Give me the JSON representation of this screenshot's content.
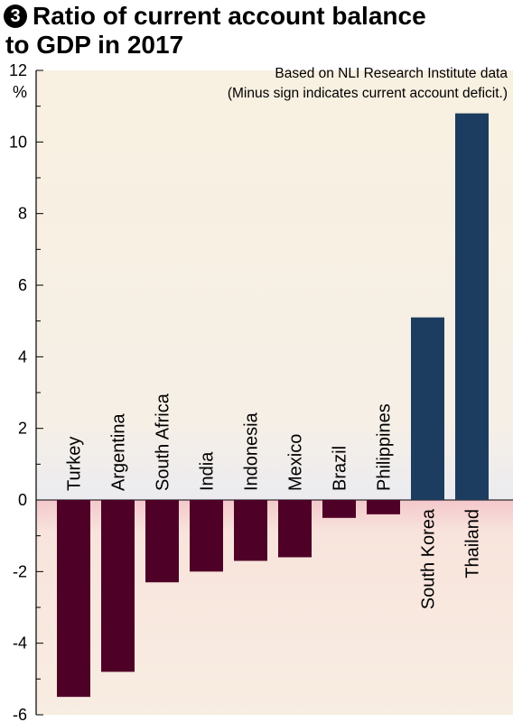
{
  "header": {
    "badge": "3",
    "title_line1": "Ratio of current account balance",
    "title_line2": "to GDP in 2017"
  },
  "colors": {
    "positive_bar": "#1c3d60",
    "negative_bar": "#4f0026",
    "background_top": "#f8f0e0",
    "background_bottom": "#f8e4dc"
  },
  "chart_data": {
    "type": "bar",
    "title": "Ratio of current account balance to GDP in 2017",
    "ylabel": "%",
    "ylim": [
      -6,
      12
    ],
    "yticks": [
      "12",
      "10",
      "8",
      "6",
      "4",
      "2",
      "0",
      "-2",
      "-4",
      "-6"
    ],
    "ytick_values": [
      12,
      10,
      8,
      6,
      4,
      2,
      0,
      -2,
      -4,
      -6
    ],
    "notes": [
      "Based on NLI Research Institute data",
      "(Minus sign indicates current account deficit.)"
    ],
    "categories": [
      "Turkey",
      "Argentina",
      "South Africa",
      "India",
      "Indonesia",
      "Mexico",
      "Brazil",
      "Philippines",
      "South Korea",
      "Thailand"
    ],
    "values": [
      -5.5,
      -4.8,
      -2.3,
      -2.0,
      -1.7,
      -1.6,
      -0.5,
      -0.4,
      5.1,
      10.8
    ]
  }
}
